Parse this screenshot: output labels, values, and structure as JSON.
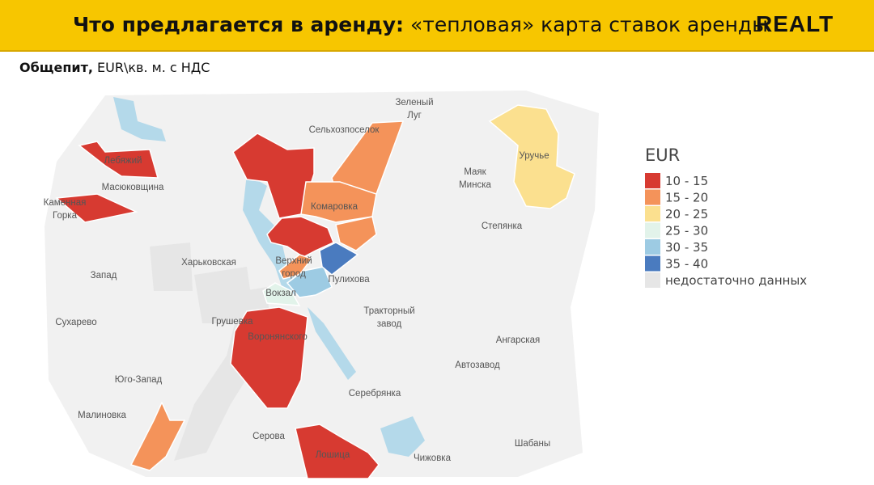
{
  "header": {
    "title_bold": "Что предлагается в аренду:",
    "title_regular": "«тепловая» карта ставок аренды",
    "brand": "REALT"
  },
  "subtitle": {
    "bold": "Общепит,",
    "regular": "EUR\\кв. м. с НДС"
  },
  "legend": {
    "title": "EUR",
    "items": [
      {
        "label": "10 - 15",
        "color": "#d73a31"
      },
      {
        "label": "15 - 20",
        "color": "#f4935a"
      },
      {
        "label": "20 - 25",
        "color": "#fbe08f"
      },
      {
        "label": "25 - 30",
        "color": "#e2f3ea"
      },
      {
        "label": "30 - 35",
        "color": "#9dcbe3"
      },
      {
        "label": "35 - 40",
        "color": "#4a7bbf"
      },
      {
        "label": "недостаточно данных",
        "color": "#e6e6e6"
      }
    ]
  },
  "map": {
    "places": [
      [
        "Зеленый",
        "Луг"
      ],
      [
        "Сельхозпоселок"
      ],
      [
        "Лебяжий"
      ],
      [
        "Маяк",
        "Минска"
      ],
      [
        "Уручье"
      ],
      [
        "Масюковщина"
      ],
      [
        "Каменная",
        "Горка"
      ],
      [
        "Комаровка"
      ],
      [
        "Степянка"
      ],
      [
        "Харьковская"
      ],
      [
        "Запад"
      ],
      [
        "Верхний",
        "город"
      ],
      [
        "Пулихова"
      ],
      [
        "Вокзал"
      ],
      [
        "Тракторный",
        "завод"
      ],
      [
        "Сухарево"
      ],
      [
        "Грушевка"
      ],
      [
        "Воронянского"
      ],
      [
        "Ангарская"
      ],
      [
        "Юго-Запад"
      ],
      [
        "Автозавод"
      ],
      [
        "Серебрянка"
      ],
      [
        "Малиновка"
      ],
      [
        "Серова"
      ],
      [
        "Шабаны"
      ],
      [
        "Лошица"
      ],
      [
        "Чижовка"
      ]
    ]
  }
}
